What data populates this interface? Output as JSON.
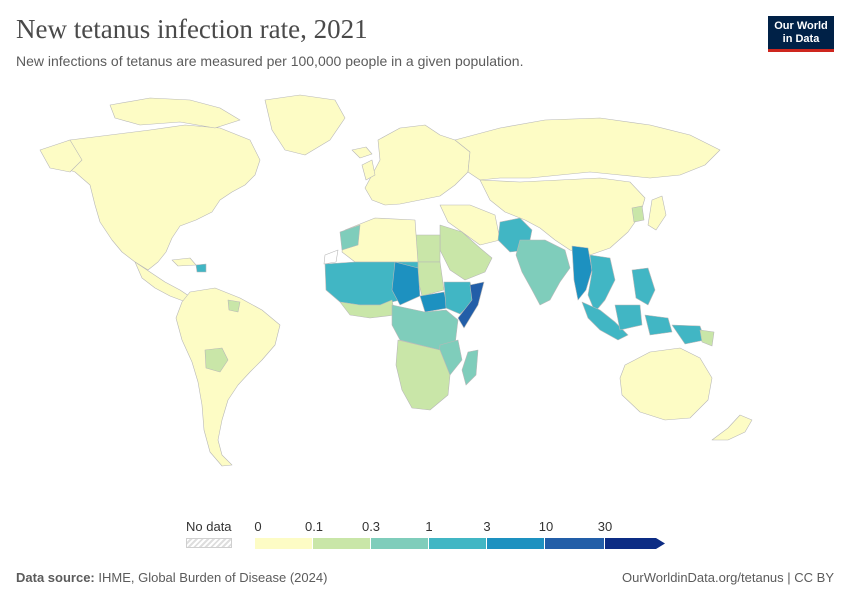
{
  "header": {
    "title": "New tetanus infection rate, 2021",
    "subtitle": "New infections of tetanus are measured per 100,000 people in a given population."
  },
  "logo": {
    "line1": "Our World",
    "line2": "in Data"
  },
  "legend": {
    "no_data_label": "No data",
    "ticks": [
      "0",
      "0.1",
      "0.3",
      "1",
      "3",
      "10",
      "30"
    ],
    "colors": [
      "#fdfcc5",
      "#c9e6a8",
      "#7fcdbb",
      "#41b6c4",
      "#1d91c0",
      "#225ea8",
      "#0c2c84"
    ]
  },
  "footer": {
    "source_label": "Data source:",
    "source_value": " IHME, Global Burden of Disease (2024)",
    "link": "OurWorldinData.org/tetanus | CC BY"
  }
}
